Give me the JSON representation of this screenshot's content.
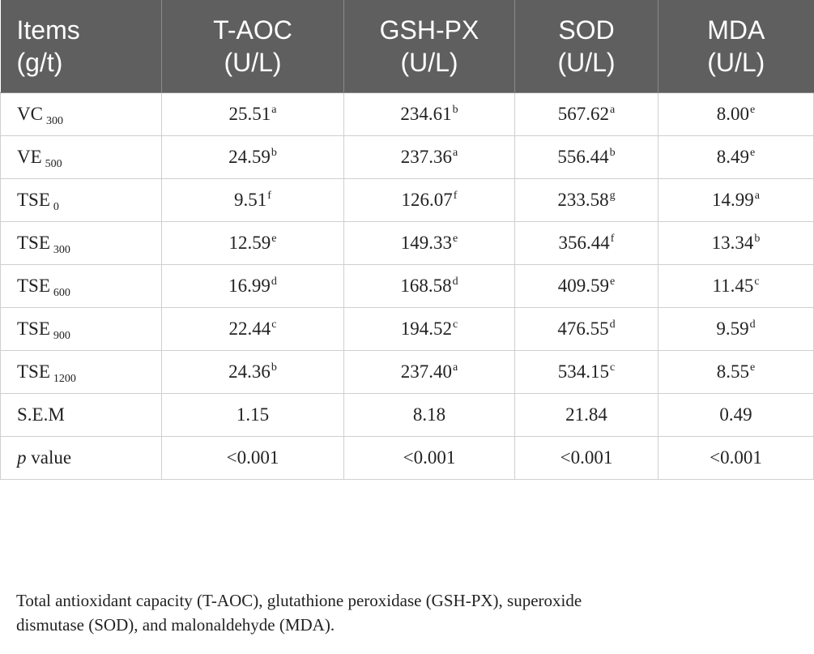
{
  "header": {
    "col0_line1": "Items",
    "col0_line2": "(g/t)",
    "col1_line1": "T-AOC",
    "col1_line2": "(U/L)",
    "col2_line1": "GSH-PX",
    "col2_line2": "(U/L)",
    "col3_line1": "SOD",
    "col3_line2": "(U/L)",
    "col4_line1": "MDA",
    "col4_line2": "(U/L)"
  },
  "rows": [
    {
      "item": "VC",
      "item_sub": "300",
      "taoc": "25.51",
      "taoc_sup": "a",
      "gsh": "234.61",
      "gsh_sup": "b",
      "sod": "567.62",
      "sod_sup": "a",
      "mda": "8.00",
      "mda_sup": "e"
    },
    {
      "item": "VE",
      "item_sub": "500",
      "taoc": "24.59",
      "taoc_sup": "b",
      "gsh": "237.36",
      "gsh_sup": "a",
      "sod": "556.44",
      "sod_sup": "b",
      "mda": "8.49",
      "mda_sup": "e"
    },
    {
      "item": "TSE",
      "item_sub": "0",
      "taoc": "9.51",
      "taoc_sup": "f",
      "gsh": "126.07",
      "gsh_sup": "f",
      "sod": "233.58",
      "sod_sup": "g",
      "mda": "14.99",
      "mda_sup": "a"
    },
    {
      "item": "TSE",
      "item_sub": "300",
      "taoc": "12.59",
      "taoc_sup": "e",
      "gsh": "149.33",
      "gsh_sup": "e",
      "sod": "356.44",
      "sod_sup": "f",
      "mda": "13.34",
      "mda_sup": "b"
    },
    {
      "item": "TSE",
      "item_sub": "600",
      "taoc": "16.99",
      "taoc_sup": "d",
      "gsh": "168.58",
      "gsh_sup": "d",
      "sod": "409.59",
      "sod_sup": "e",
      "mda": "11.45",
      "mda_sup": "c"
    },
    {
      "item": "TSE",
      "item_sub": "900",
      "taoc": "22.44",
      "taoc_sup": "c",
      "gsh": "194.52",
      "gsh_sup": "c",
      "sod": "476.55",
      "sod_sup": "d",
      "mda": "9.59",
      "mda_sup": "d"
    },
    {
      "item": "TSE",
      "item_sub": "1200",
      "taoc": "24.36",
      "taoc_sup": "b",
      "gsh": "237.40",
      "gsh_sup": "a",
      "sod": "534.15",
      "sod_sup": "c",
      "mda": "8.55",
      "mda_sup": "e"
    }
  ],
  "sem_row": {
    "label": "S.E.M",
    "taoc": "1.15",
    "gsh": "8.18",
    "sod": "21.84",
    "mda": "0.49"
  },
  "p_row": {
    "label_italic": "p",
    "label_rest": " value",
    "taoc": "<0.001",
    "gsh": "<0.001",
    "sod": "<0.001",
    "mda": "<0.001"
  },
  "footnote": {
    "line1": "Total antioxidant capacity (T-AOC), glutathione peroxidase (GSH-PX), superoxide",
    "line2": "dismutase (SOD), and malonaldehyde (MDA)."
  },
  "colors": {
    "header_bg": "#5f5f5f",
    "header_text": "#ffffff",
    "grid_line": "#cfcfcf"
  }
}
